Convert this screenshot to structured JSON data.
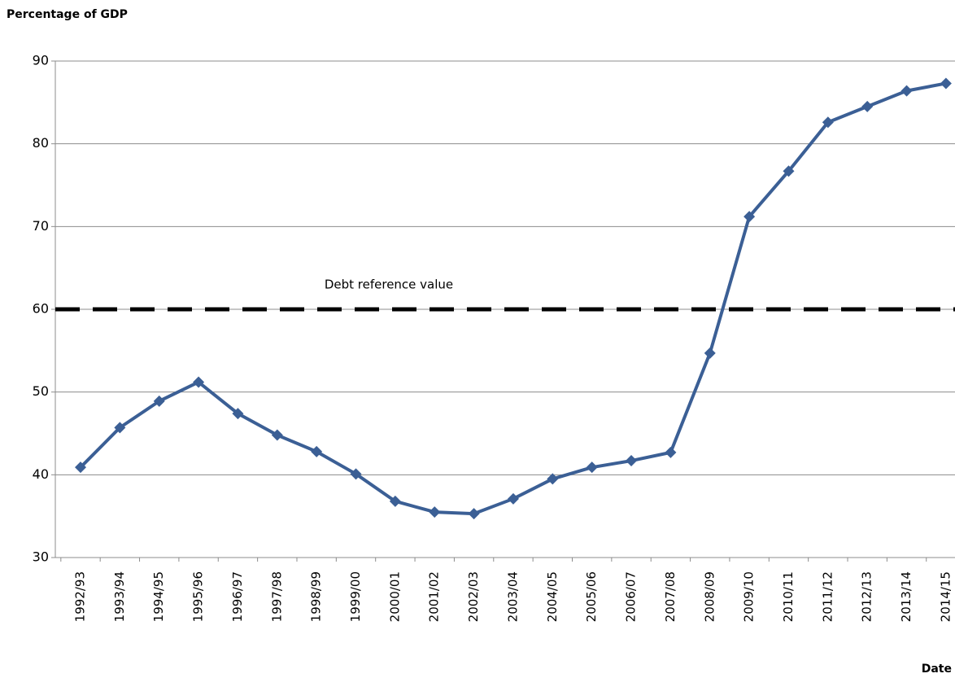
{
  "chart_data": {
    "type": "line",
    "y_axis_label": "Percentage of GDP",
    "x_axis_label": "Date",
    "categories": [
      "1992/93",
      "1993/94",
      "1994/95",
      "1995/96",
      "1996/97",
      "1997/98",
      "1998/99",
      "1999/00",
      "2000/01",
      "2001/02",
      "2002/03",
      "2003/04",
      "2004/05",
      "2005/06",
      "2006/07",
      "2007/08",
      "2008/09",
      "2009/10",
      "2010/11",
      "2011/12",
      "2012/13",
      "2013/14",
      "2014/15"
    ],
    "values": [
      40.9,
      45.7,
      48.9,
      51.2,
      47.4,
      44.8,
      42.8,
      40.1,
      36.8,
      35.5,
      35.3,
      37.1,
      39.5,
      40.9,
      41.7,
      42.7,
      54.7,
      71.2,
      76.7,
      82.6,
      84.5,
      86.4,
      87.3
    ],
    "color": "#3b5f95",
    "reference_line": {
      "value": 60,
      "label": "Debt reference value",
      "color": "#000000"
    },
    "ylim": [
      30,
      90
    ],
    "yticks": [
      30,
      40,
      50,
      60,
      70,
      80,
      90
    ],
    "grid": true
  }
}
